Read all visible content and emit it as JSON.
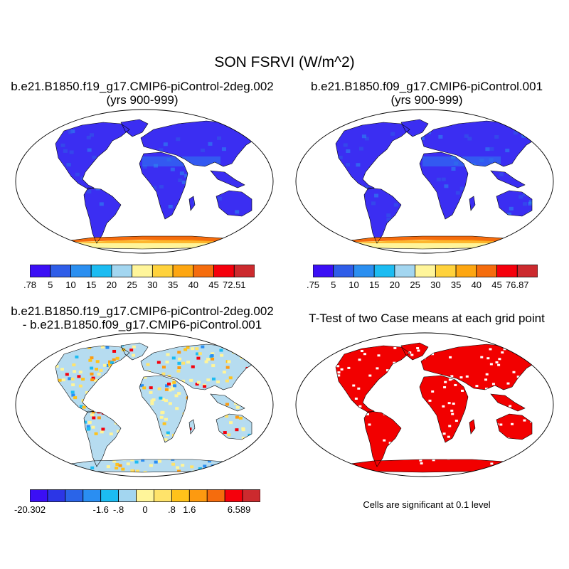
{
  "title": "SON FSRVI (W/m^2)",
  "panels": {
    "top_left": {
      "title_line1": "b.e21.B1850.f19_g17.CMIP6-piControl-2deg.002",
      "title_line2": "(yrs 900-999)",
      "colorbar_labels": [
        ".78",
        "5",
        "10",
        "15",
        "20",
        "25",
        "30",
        "35",
        "40",
        "45",
        "72.51"
      ]
    },
    "top_right": {
      "title_line1": "b.e21.B1850.f09_g17.CMIP6-piControl.001",
      "title_line2": "(yrs 900-999)",
      "colorbar_labels": [
        ".75",
        "5",
        "10",
        "15",
        "20",
        "25",
        "30",
        "35",
        "40",
        "45",
        "76.87"
      ]
    },
    "bottom_left": {
      "title_line1": "b.e21.B1850.f19_g17.CMIP6-piControl-2deg.002",
      "title_line2": "- b.e21.B1850.f09_g17.CMIP6-piControl.001",
      "colorbar_labels": [
        "-20.302",
        "-1.6",
        "-.8",
        "0",
        ".8",
        "1.6",
        "6.589"
      ]
    },
    "bottom_right": {
      "title": "T-Test of two Case means at each grid point",
      "note": "Cells are significant at 0.1 level"
    }
  },
  "colors": {
    "abs_scale": [
      "#3b0ff5",
      "#2f5de8",
      "#2b8ff0",
      "#1cbcf2",
      "#a3d6f0",
      "#fff59a",
      "#ffd23c",
      "#fda611",
      "#f56c0d",
      "#f5000c",
      "#cc2a2e"
    ],
    "diff_scale": [
      "#3b0ff5",
      "#2c36e6",
      "#2a64e8",
      "#2a8ef2",
      "#1cbcf2",
      "#a3d6f0",
      "#fff59a",
      "#ffe36a",
      "#ffc21a",
      "#fd9a10",
      "#f56c0d",
      "#f5000c",
      "#cc2a2e"
    ],
    "land_abs": "#3b2ef2",
    "land_diff": "#b6dcf0",
    "significant": "#f20000"
  }
}
